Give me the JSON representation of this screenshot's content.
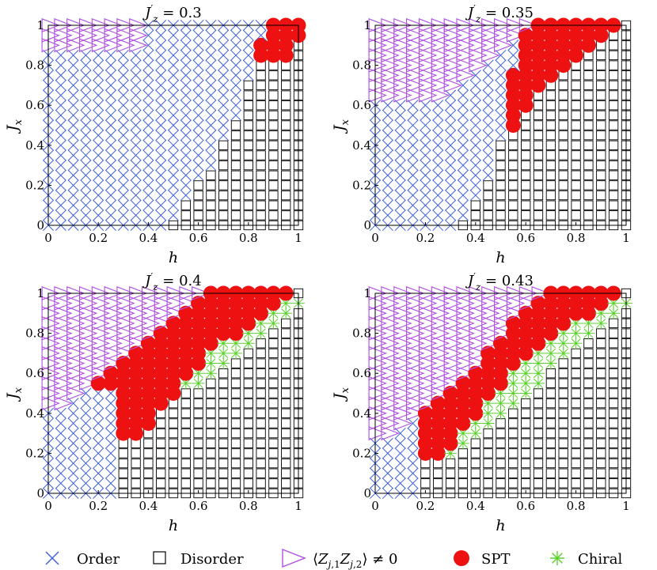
{
  "chart_data": [
    {
      "type": "scatter",
      "title": "J′z = 0.3",
      "xlabel": "h",
      "ylabel": "Jx",
      "xlim": [
        0,
        1
      ],
      "ylim": [
        0,
        1
      ],
      "xticks": [
        "0",
        "0.2",
        "0.4",
        "0.6",
        "0.8",
        "1"
      ],
      "yticks": [
        "0",
        "0.2",
        "0.4",
        "0.6",
        "0.8",
        "1"
      ],
      "grid_step": 0.05,
      "boundaries": [
        {
          "name": "Z",
          "jx": [
            0.9,
            1.0
          ],
          "h_max": [
            0.35,
            0.35
          ]
        },
        {
          "name": "Order",
          "jx": [
            0.0,
            0.25,
            0.45,
            0.65,
            0.85,
            1.0
          ],
          "h_max": [
            0.45,
            0.6,
            0.7,
            0.75,
            0.8,
            0.85
          ]
        },
        {
          "name": "SPT",
          "jx": [
            0.85,
            1.0
          ],
          "h_max": [
            0.95,
            1.0
          ]
        }
      ]
    },
    {
      "type": "scatter",
      "title": "J′z = 0.35",
      "xlabel": "h",
      "ylabel": "Jx",
      "xlim": [
        0,
        1
      ],
      "ylim": [
        0,
        1
      ],
      "xticks": [
        "0",
        "0.2",
        "0.4",
        "0.6",
        "0.8",
        "1"
      ],
      "yticks": [
        "0",
        "0.2",
        "0.4",
        "0.6",
        "0.8",
        "1"
      ],
      "grid_step": 0.05,
      "boundaries": [
        {
          "name": "Z",
          "jx": [
            0.65,
            0.85,
            1.0
          ],
          "h_max": [
            0.25,
            0.45,
            0.6
          ]
        },
        {
          "name": "Order",
          "jx": [
            0.0,
            0.3,
            0.6,
            1.0
          ],
          "h_max": [
            0.3,
            0.45,
            0.5,
            0.55
          ]
        },
        {
          "name": "SPT",
          "jx": [
            0.5,
            0.65,
            0.75,
            0.85,
            1.0
          ],
          "h_max": [
            0.55,
            0.6,
            0.7,
            0.8,
            0.95
          ]
        }
      ]
    },
    {
      "type": "scatter",
      "title": "J′z = 0.4",
      "xlabel": "h",
      "ylabel": "Jx",
      "xlim": [
        0,
        1
      ],
      "ylim": [
        0,
        1
      ],
      "xticks": [
        "0",
        "0.2",
        "0.4",
        "0.6",
        "0.8",
        "1"
      ],
      "yticks": [
        "0",
        "0.2",
        "0.4",
        "0.6",
        "0.8",
        "1"
      ],
      "grid_step": 0.05,
      "boundaries": [
        {
          "name": "Z",
          "jx": [
            0.45,
            0.6,
            0.75,
            0.9,
            1.0
          ],
          "h_max": [
            0.05,
            0.2,
            0.35,
            0.5,
            0.6
          ]
        },
        {
          "name": "Order",
          "jx": [
            0.0,
            0.5
          ],
          "h_max": [
            0.25,
            0.25
          ]
        },
        {
          "name": "SPT",
          "jx": [
            0.3,
            0.45,
            0.6,
            0.75,
            0.85,
            1.0
          ],
          "h_max": [
            0.35,
            0.45,
            0.55,
            0.65,
            0.8,
            0.95
          ]
        },
        {
          "name": "Chiral",
          "jx": [
            0.55,
            0.6,
            0.7,
            0.8,
            0.9,
            0.95
          ],
          "h_max": [
            0.6,
            0.65,
            0.75,
            0.85,
            0.95,
            1.0
          ]
        }
      ]
    },
    {
      "type": "scatter",
      "title": "J′z = 0.43",
      "xlabel": "h",
      "ylabel": "Jx",
      "xlim": [
        0,
        1
      ],
      "ylim": [
        0,
        1
      ],
      "xticks": [
        "0",
        "0.2",
        "0.4",
        "0.6",
        "0.8",
        "1"
      ],
      "yticks": [
        "0",
        "0.2",
        "0.4",
        "0.6",
        "0.8",
        "1"
      ],
      "grid_step": 0.05,
      "boundaries": [
        {
          "name": "Z",
          "jx": [
            0.3,
            0.45,
            0.6,
            0.75,
            0.9,
            1.0
          ],
          "h_max": [
            0.05,
            0.2,
            0.35,
            0.45,
            0.55,
            0.65
          ]
        },
        {
          "name": "Order",
          "jx": [
            0.0,
            0.4
          ],
          "h_max": [
            0.15,
            0.15
          ]
        },
        {
          "name": "SPT",
          "jx": [
            0.2,
            0.35,
            0.5,
            0.65,
            0.8,
            1.0
          ],
          "h_max": [
            0.25,
            0.35,
            0.45,
            0.55,
            0.7,
            0.95
          ]
        },
        {
          "name": "Chiral",
          "jx": [
            0.2,
            0.35,
            0.5,
            0.65,
            0.8,
            0.95
          ],
          "h_max": [
            0.3,
            0.45,
            0.6,
            0.7,
            0.85,
            1.0
          ]
        }
      ]
    }
  ],
  "legend": {
    "items": [
      {
        "key": "order",
        "label": "Order",
        "color": "#3d5fd9"
      },
      {
        "key": "disorder",
        "label": "Disorder",
        "color": "#000000"
      },
      {
        "key": "z",
        "label": "⟨Zj,1 Zj,2⟩ ≠ 0",
        "color": "#b04fe0"
      },
      {
        "key": "spt",
        "label": "SPT",
        "color": "#ee1111"
      },
      {
        "key": "chiral",
        "label": "Chiral",
        "color": "#5ad12b"
      }
    ]
  }
}
